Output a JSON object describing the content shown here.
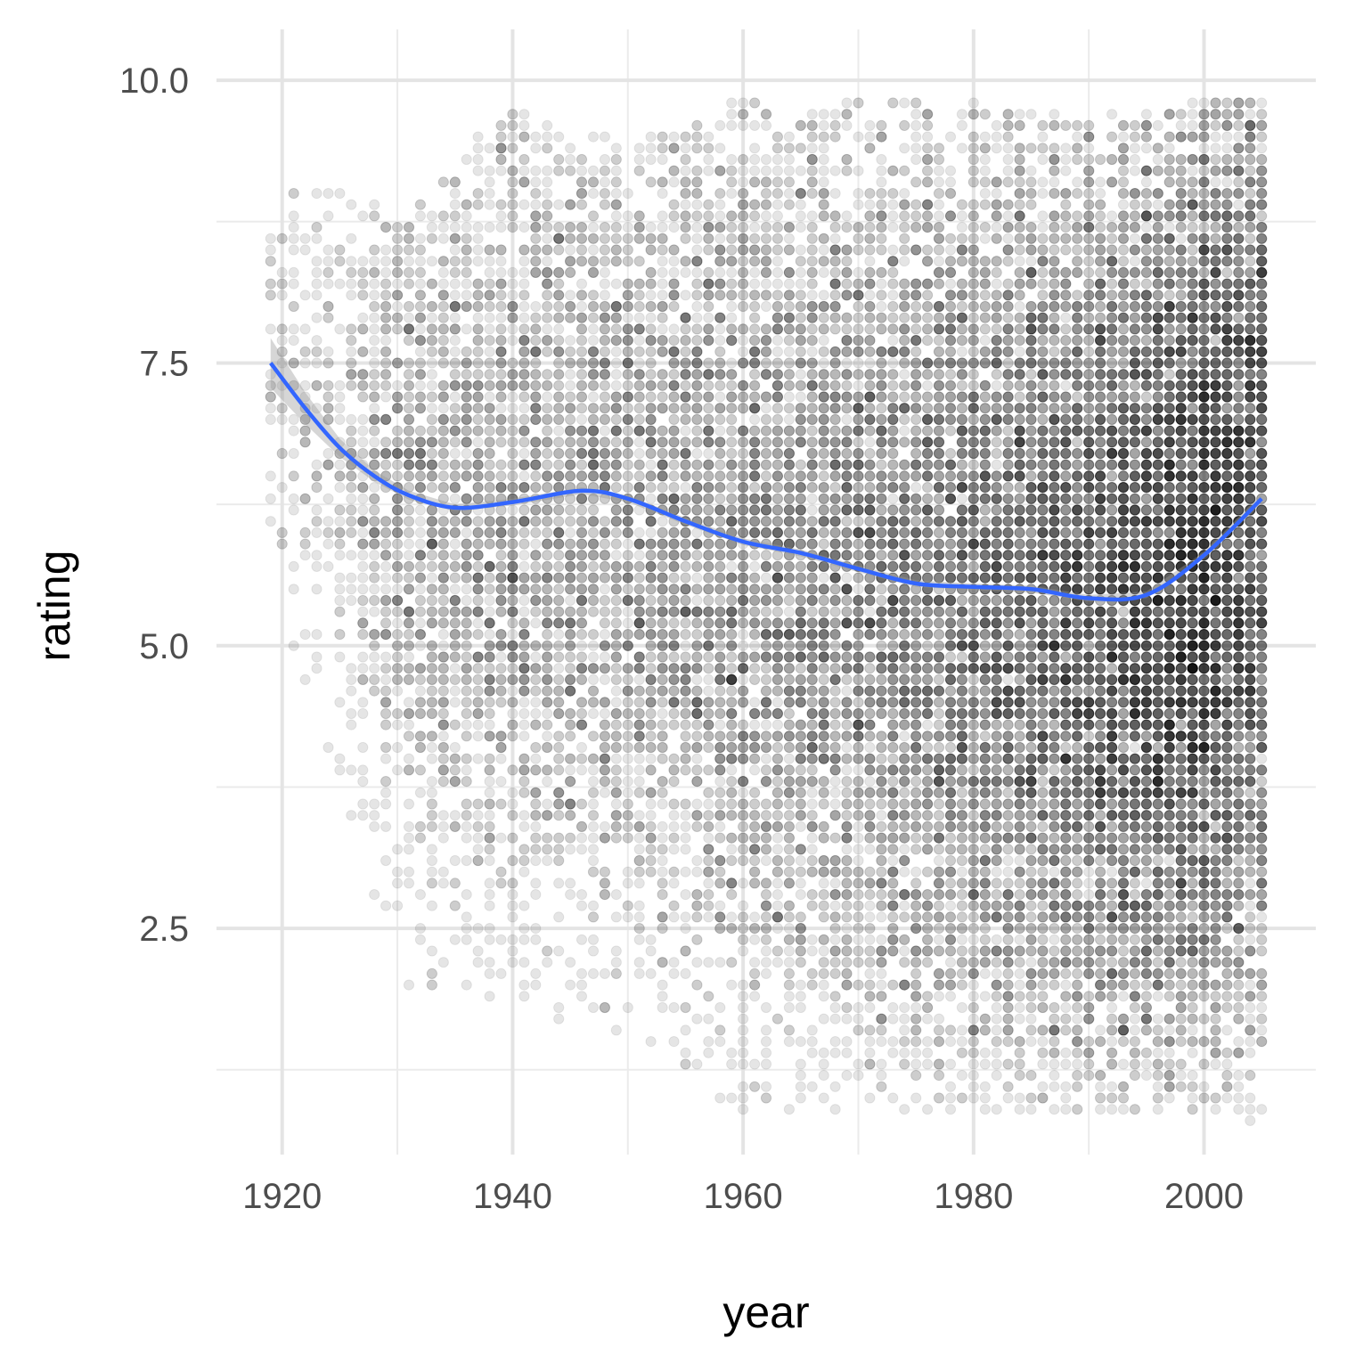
{
  "chart_data": {
    "type": "scatter",
    "title": "",
    "xlabel": "year",
    "ylabel": "rating",
    "xlim": [
      1914.3,
      2009.7
    ],
    "ylim": [
      0.5,
      10.45
    ],
    "x_ticks": [
      1920,
      1940,
      1960,
      1980,
      2000
    ],
    "x_tick_labels": [
      "1920",
      "1940",
      "1960",
      "1980",
      "2000"
    ],
    "y_ticks": [
      2.5,
      5.0,
      7.5,
      10.0
    ],
    "y_tick_labels": [
      "2.5",
      "5.0",
      "7.5",
      "10.0"
    ],
    "grid": true,
    "legend": "none",
    "point_color": "#000000",
    "point_alpha": 0.1,
    "series": [
      {
        "type": "points",
        "note_density_by_year": [
          {
            "year": 1919,
            "ymin": 5.4,
            "ymax": 9.1,
            "count": 20
          },
          {
            "year": 1925,
            "ymin": 3.8,
            "ymax": 9.0,
            "count": 40
          },
          {
            "year": 1930,
            "ymin": 2.0,
            "ymax": 8.8,
            "count": 120
          },
          {
            "year": 1940,
            "ymin": 1.8,
            "ymax": 9.8,
            "count": 160
          },
          {
            "year": 1950,
            "ymin": 1.6,
            "ymax": 9.4,
            "count": 170
          },
          {
            "year": 1960,
            "ymin": 0.9,
            "ymax": 9.8,
            "count": 220
          },
          {
            "year": 1970,
            "ymin": 0.9,
            "ymax": 9.8,
            "count": 260
          },
          {
            "year": 1980,
            "ymin": 0.9,
            "ymax": 9.8,
            "count": 330
          },
          {
            "year": 1990,
            "ymin": 0.9,
            "ymax": 9.7,
            "count": 450
          },
          {
            "year": 2000,
            "ymin": 0.9,
            "ymax": 9.8,
            "count": 650
          },
          {
            "year": 2005,
            "ymin": 0.8,
            "ymax": 9.8,
            "count": 500
          }
        ]
      },
      {
        "type": "smooth",
        "color": "#3366FF",
        "band_color": "#999999",
        "x": [
          1919,
          1922,
          1925,
          1928,
          1931,
          1935,
          1940,
          1946,
          1950,
          1955,
          1960,
          1965,
          1970,
          1975,
          1980,
          1985,
          1990,
          1995,
          2000,
          2005
        ],
        "y": [
          7.5,
          7.1,
          6.75,
          6.5,
          6.33,
          6.22,
          6.27,
          6.37,
          6.3,
          6.1,
          5.92,
          5.82,
          5.68,
          5.55,
          5.52,
          5.5,
          5.42,
          5.45,
          5.8,
          6.3
        ],
        "band_halfwidth": [
          0.22,
          0.14,
          0.08,
          0.05,
          0.04,
          0.03,
          0.03,
          0.03,
          0.03,
          0.03,
          0.03,
          0.03,
          0.03,
          0.03,
          0.03,
          0.03,
          0.03,
          0.03,
          0.03,
          0.04
        ]
      }
    ]
  }
}
